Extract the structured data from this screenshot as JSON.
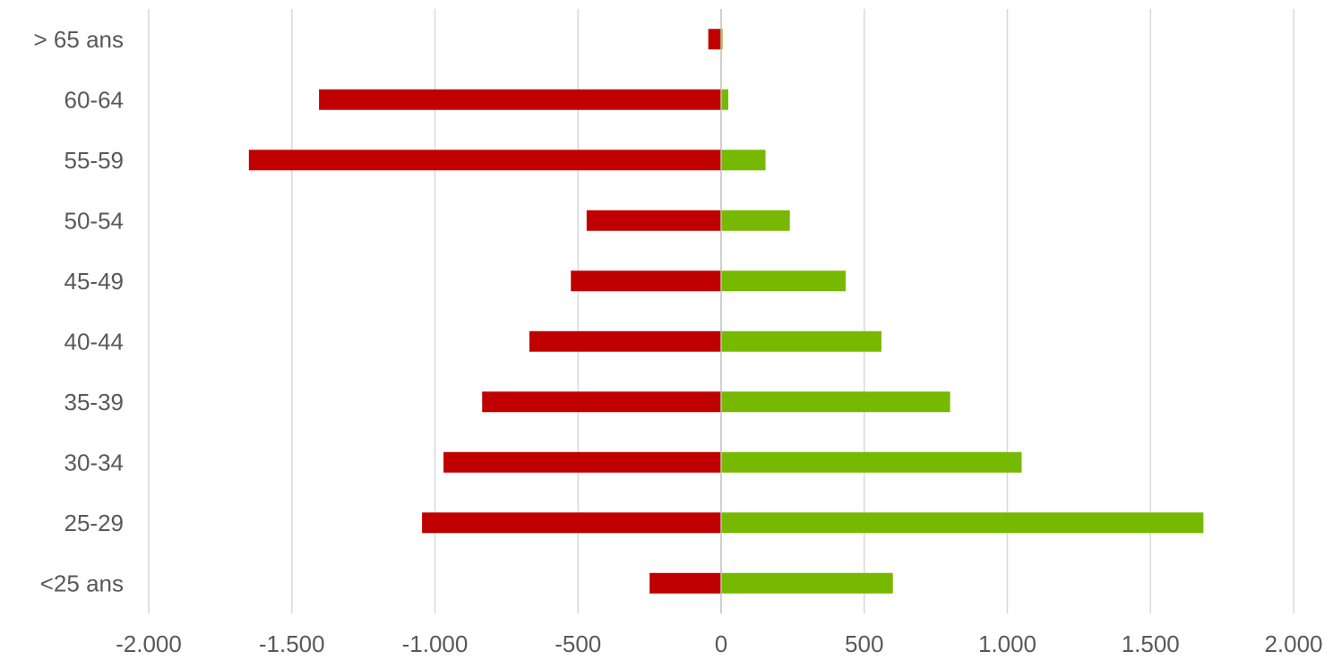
{
  "chart_data": {
    "type": "bar",
    "orientation": "horizontal",
    "stacked": true,
    "categories": [
      "> 65 ans",
      "60-64",
      "55-59",
      "50-54",
      "45-49",
      "40-44",
      "35-39",
      "30-34",
      "25-29",
      "<25 ans"
    ],
    "series": [
      {
        "color": "#c00000",
        "values": [
          -45,
          -1405,
          -1650,
          -470,
          -525,
          -670,
          -835,
          -970,
          -1045,
          -250
        ]
      },
      {
        "color": "#76b900",
        "values": [
          5,
          25,
          155,
          240,
          435,
          560,
          800,
          1050,
          1685,
          600
        ]
      }
    ],
    "xlim": [
      -2000,
      2000
    ],
    "xticks": [
      -2000,
      -1500,
      -1000,
      -500,
      0,
      500,
      1000,
      1500,
      2000
    ],
    "xtick_labels": [
      "-2.000",
      "-1.500",
      "-1.000",
      "-500",
      "0",
      "500",
      "1.000",
      "1.500",
      "2.000"
    ],
    "title": "",
    "xlabel": "",
    "ylabel": "",
    "grid": true,
    "legend": "none"
  }
}
